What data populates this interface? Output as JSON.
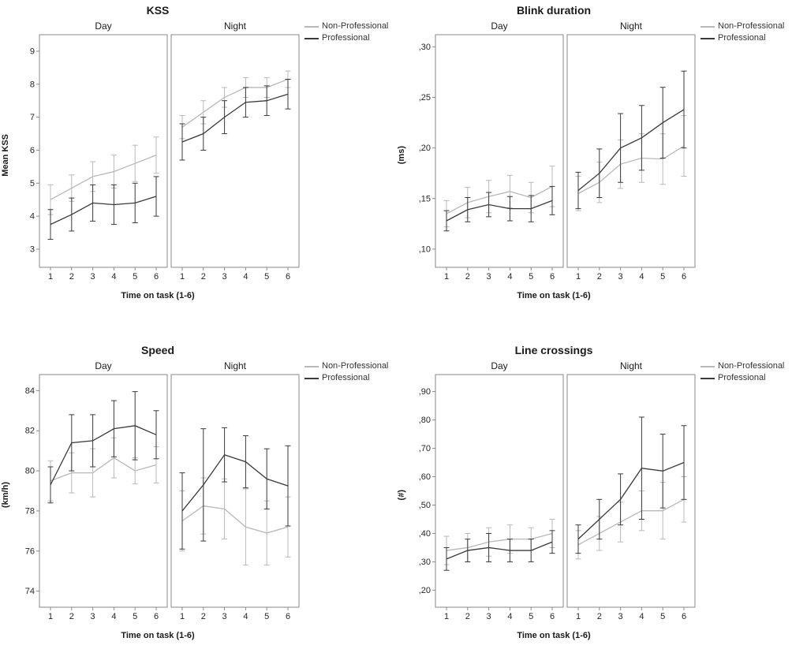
{
  "page": {
    "background": "#ffffff"
  },
  "legend": {
    "items": [
      {
        "label": "Non-Professional",
        "color": "#b8b8b8"
      },
      {
        "label": "Professional",
        "color": "#3a3a3a"
      }
    ]
  },
  "chart_data": [
    {
      "id": "kss",
      "type": "line",
      "title": "KSS",
      "ylabel": "Mean KSS",
      "xlabel": "Time on task (1-6)",
      "x": [
        1,
        2,
        3,
        4,
        5,
        6
      ],
      "x_tick_labels": [
        "1",
        "2",
        "3",
        "4",
        "5",
        "6"
      ],
      "ylim": [
        2.45,
        9.5
      ],
      "yticks": [
        3,
        4,
        5,
        6,
        7,
        8,
        9
      ],
      "ytick_labels": [
        "3",
        "4",
        "5",
        "6",
        "7",
        "8",
        "9"
      ],
      "grid": false,
      "legend_position": "top-right-outside",
      "panels": [
        {
          "label": "Day",
          "series": [
            {
              "name": "Non-Professional",
              "values": [
                4.5,
                4.85,
                5.2,
                5.35,
                5.6,
                5.85
              ],
              "errors": [
                0.45,
                0.4,
                0.45,
                0.5,
                0.55,
                0.55
              ]
            },
            {
              "name": "Professional",
              "values": [
                3.75,
                4.05,
                4.4,
                4.35,
                4.4,
                4.6
              ],
              "errors": [
                0.45,
                0.5,
                0.55,
                0.6,
                0.6,
                0.6
              ]
            }
          ]
        },
        {
          "label": "Night",
          "series": [
            {
              "name": "Non-Professional",
              "values": [
                6.7,
                7.15,
                7.6,
                7.9,
                7.9,
                8.15
              ],
              "errors": [
                0.35,
                0.35,
                0.3,
                0.3,
                0.3,
                0.25
              ]
            },
            {
              "name": "Professional",
              "values": [
                6.25,
                6.5,
                7.0,
                7.45,
                7.5,
                7.7
              ],
              "errors": [
                0.55,
                0.5,
                0.5,
                0.45,
                0.45,
                0.45
              ]
            }
          ]
        }
      ]
    },
    {
      "id": "blink-duration",
      "type": "line",
      "title": "Blink duration",
      "ylabel": "(ms)",
      "xlabel": "Time on task (1-6)",
      "x": [
        1,
        2,
        3,
        4,
        5,
        6
      ],
      "x_tick_labels": [
        "1",
        "2",
        "3",
        "4",
        "5",
        "6"
      ],
      "ylim": [
        0.082,
        0.312
      ],
      "yticks": [
        0.1,
        0.15,
        0.2,
        0.25,
        0.3
      ],
      "ytick_labels": [
        ",10",
        ",15",
        ",20",
        ",25",
        ",30"
      ],
      "grid": false,
      "legend_position": "top-right-outside",
      "panels": [
        {
          "label": "Day",
          "series": [
            {
              "name": "Non-Professional",
              "values": [
                0.135,
                0.146,
                0.152,
                0.157,
                0.151,
                0.162
              ],
              "errors": [
                0.013,
                0.015,
                0.016,
                0.016,
                0.015,
                0.02
              ]
            },
            {
              "name": "Professional",
              "values": [
                0.128,
                0.139,
                0.144,
                0.14,
                0.14,
                0.148
              ],
              "errors": [
                0.01,
                0.012,
                0.012,
                0.012,
                0.013,
                0.014
              ]
            }
          ]
        },
        {
          "label": "Night",
          "series": [
            {
              "name": "Non-Professional",
              "values": [
                0.155,
                0.166,
                0.184,
                0.19,
                0.189,
                0.202
              ],
              "errors": [
                0.017,
                0.02,
                0.024,
                0.024,
                0.025,
                0.03
              ]
            },
            {
              "name": "Professional",
              "values": [
                0.158,
                0.175,
                0.2,
                0.21,
                0.225,
                0.238
              ],
              "errors": [
                0.018,
                0.024,
                0.034,
                0.032,
                0.035,
                0.038
              ]
            }
          ]
        }
      ]
    },
    {
      "id": "speed",
      "type": "line",
      "title": "Speed",
      "ylabel": "(km/h)",
      "xlabel": "Time on task (1-6)",
      "x": [
        1,
        2,
        3,
        4,
        5,
        6
      ],
      "x_tick_labels": [
        "1",
        "2",
        "3",
        "4",
        "5",
        "6"
      ],
      "ylim": [
        73.2,
        84.8
      ],
      "yticks": [
        74,
        76,
        78,
        80,
        82,
        84
      ],
      "ytick_labels": [
        "74",
        "76",
        "78",
        "80",
        "82",
        "84"
      ],
      "grid": false,
      "legend_position": "top-right-outside",
      "panels": [
        {
          "label": "Day",
          "series": [
            {
              "name": "Non-Professional",
              "values": [
                79.5,
                79.9,
                79.9,
                80.65,
                80.0,
                80.3
              ],
              "errors": [
                1.0,
                1.0,
                1.2,
                1.0,
                0.65,
                0.9
              ]
            },
            {
              "name": "Professional",
              "values": [
                79.3,
                81.4,
                81.5,
                82.1,
                82.25,
                81.8
              ],
              "errors": [
                0.9,
                1.4,
                1.3,
                1.4,
                1.7,
                1.2
              ]
            }
          ]
        },
        {
          "label": "Night",
          "series": [
            {
              "name": "Non-Professional",
              "values": [
                77.5,
                78.25,
                78.1,
                77.2,
                76.9,
                77.2
              ],
              "errors": [
                1.5,
                1.4,
                1.5,
                1.9,
                1.6,
                1.5
              ]
            },
            {
              "name": "Professional",
              "values": [
                78.0,
                79.3,
                80.8,
                80.45,
                79.6,
                79.25
              ],
              "errors": [
                1.9,
                2.8,
                1.35,
                1.3,
                1.5,
                2.0
              ]
            }
          ]
        }
      ]
    },
    {
      "id": "line-crossings",
      "type": "line",
      "title": "Line crossings",
      "ylabel": "(#)",
      "xlabel": "Time on task (1-6)",
      "x": [
        1,
        2,
        3,
        4,
        5,
        6
      ],
      "x_tick_labels": [
        "1",
        "2",
        "3",
        "4",
        "5",
        "6"
      ],
      "ylim": [
        0.14,
        0.96
      ],
      "yticks": [
        0.2,
        0.3,
        0.4,
        0.5,
        0.6,
        0.7,
        0.8,
        0.9
      ],
      "ytick_labels": [
        ",20",
        ",30",
        ",40",
        ",50",
        ",60",
        ",70",
        ",80",
        ",90"
      ],
      "grid": false,
      "legend_position": "top-right-outside",
      "panels": [
        {
          "label": "Day",
          "series": [
            {
              "name": "Non-Professional",
              "values": [
                0.34,
                0.35,
                0.37,
                0.38,
                0.38,
                0.4
              ],
              "errors": [
                0.05,
                0.05,
                0.05,
                0.05,
                0.04,
                0.05
              ]
            },
            {
              "name": "Professional",
              "values": [
                0.31,
                0.34,
                0.35,
                0.34,
                0.34,
                0.37
              ],
              "errors": [
                0.04,
                0.04,
                0.05,
                0.04,
                0.04,
                0.04
              ]
            }
          ]
        },
        {
          "label": "Night",
          "series": [
            {
              "name": "Non-Professional",
              "values": [
                0.36,
                0.4,
                0.44,
                0.48,
                0.48,
                0.52
              ],
              "errors": [
                0.05,
                0.06,
                0.07,
                0.07,
                0.1,
                0.08
              ]
            },
            {
              "name": "Professional",
              "values": [
                0.38,
                0.45,
                0.52,
                0.63,
                0.62,
                0.65
              ],
              "errors": [
                0.05,
                0.07,
                0.09,
                0.18,
                0.13,
                0.13
              ]
            }
          ]
        }
      ]
    }
  ]
}
